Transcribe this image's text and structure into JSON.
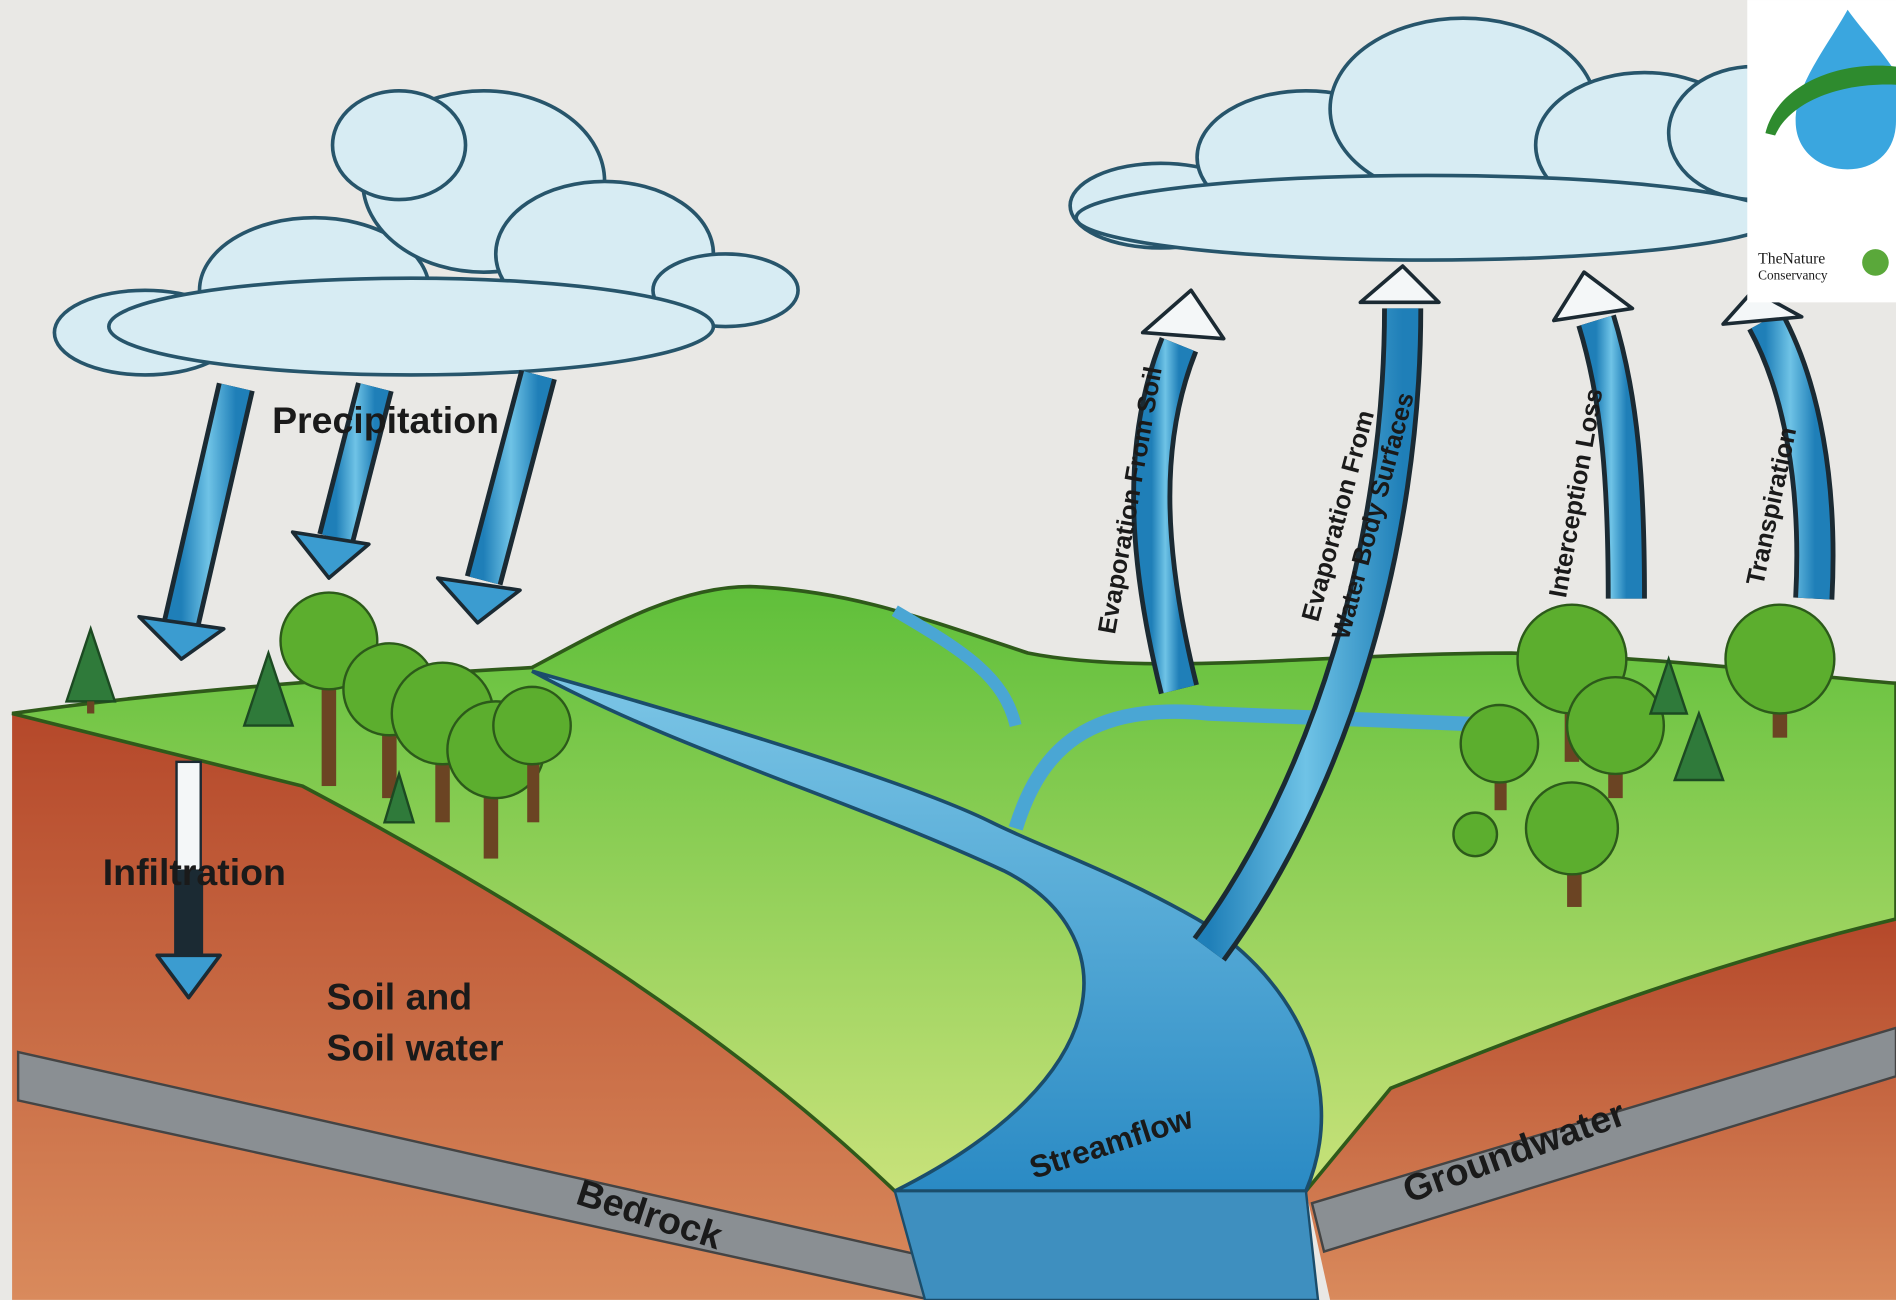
{
  "labels": {
    "precipitation": "Precipitation",
    "infiltration": "Infiltration",
    "soil": [
      "Soil and",
      "Soil water"
    ],
    "evaporation_soil": "Evaporation From Soil",
    "evaporation_water": [
      "Evaporation From",
      "Water Body Surfaces"
    ],
    "interception_loss": "Interception Loss",
    "transpiration": "Transpiration",
    "streamflow": "Streamflow",
    "bedrock": "Bedrock",
    "groundwater": "Groundwater"
  },
  "logo": {
    "line1": "TheNature",
    "line2": "Conservancy"
  }
}
